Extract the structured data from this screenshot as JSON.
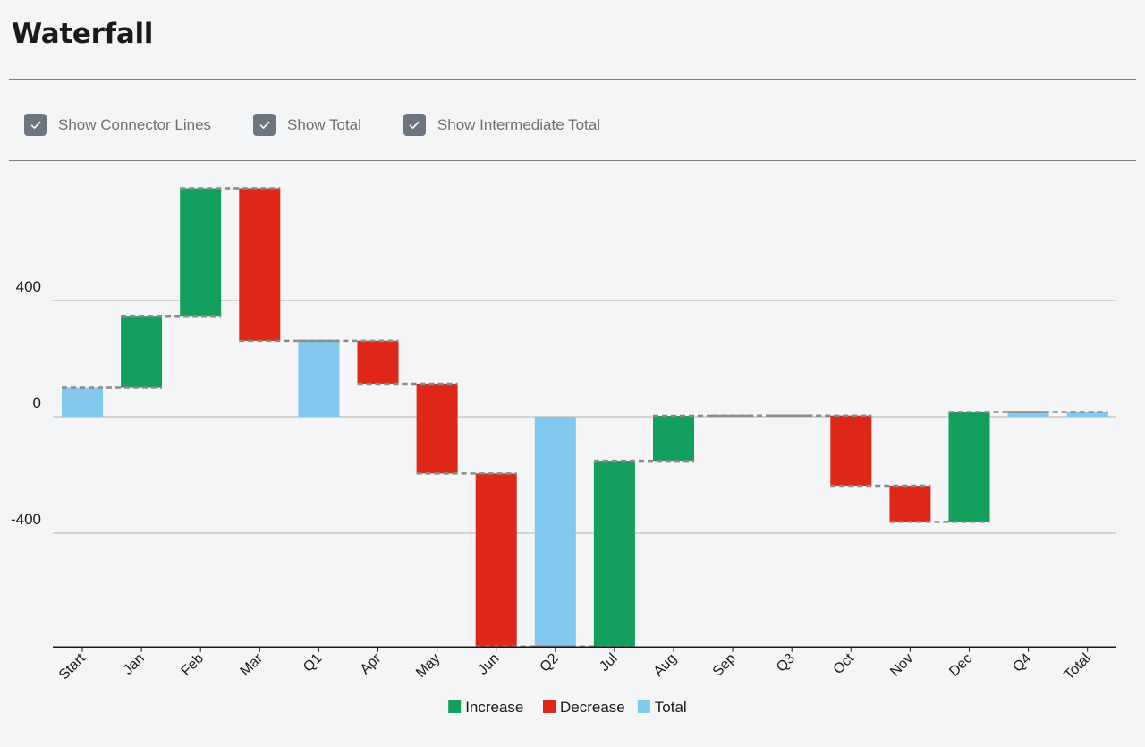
{
  "page": {
    "title": "Waterfall"
  },
  "options": [
    {
      "label": "Show Connector Lines",
      "checked": true
    },
    {
      "label": "Show Total",
      "checked": true
    },
    {
      "label": "Show Intermediate Total",
      "checked": true
    }
  ],
  "colors": {
    "increase": "#119f5b",
    "decrease": "#de2716",
    "total": "#82c8ef",
    "connector": "#8a8a8a",
    "grid": "#b3b3b3",
    "axis": "#1a1a1a"
  },
  "chart_data": {
    "type": "bar",
    "subtype": "waterfall",
    "title": "",
    "xlabel": "",
    "ylabel": "",
    "ylim": [
      -790,
      790
    ],
    "yticks": [
      -400,
      0,
      400
    ],
    "grid": true,
    "legend_position": "bottom",
    "legend": [
      {
        "label": "Increase",
        "kind": "increase"
      },
      {
        "label": "Decrease",
        "kind": "decrease"
      },
      {
        "label": "Total",
        "kind": "total"
      }
    ],
    "categories": [
      "Start",
      "Jan",
      "Feb",
      "Mar",
      "Q1",
      "Apr",
      "May",
      "Jun",
      "Q2",
      "Jul",
      "Aug",
      "Sep",
      "Q3",
      "Oct",
      "Nov",
      "Dec",
      "Q4",
      "Total"
    ],
    "bars": [
      {
        "kind": "total",
        "start": 0,
        "end": 100
      },
      {
        "kind": "increase",
        "start": 100,
        "end": 347
      },
      {
        "kind": "increase",
        "start": 347,
        "end": 786
      },
      {
        "kind": "decrease",
        "start": 786,
        "end": 262
      },
      {
        "kind": "total",
        "start": 0,
        "end": 262
      },
      {
        "kind": "decrease",
        "start": 262,
        "end": 114
      },
      {
        "kind": "decrease",
        "start": 114,
        "end": -195
      },
      {
        "kind": "decrease",
        "start": -195,
        "end": -790
      },
      {
        "kind": "total",
        "start": 0,
        "end": -790
      },
      {
        "kind": "increase",
        "start": -790,
        "end": -151
      },
      {
        "kind": "increase",
        "start": -151,
        "end": 3
      },
      {
        "kind": "increase",
        "start": 3,
        "end": 4
      },
      {
        "kind": "total",
        "start": 0,
        "end": 4
      },
      {
        "kind": "decrease",
        "start": 4,
        "end": -237
      },
      {
        "kind": "decrease",
        "start": -237,
        "end": -361
      },
      {
        "kind": "increase",
        "start": -361,
        "end": 17
      },
      {
        "kind": "total",
        "start": 0,
        "end": 17
      },
      {
        "kind": "total",
        "start": 0,
        "end": 17
      }
    ]
  }
}
